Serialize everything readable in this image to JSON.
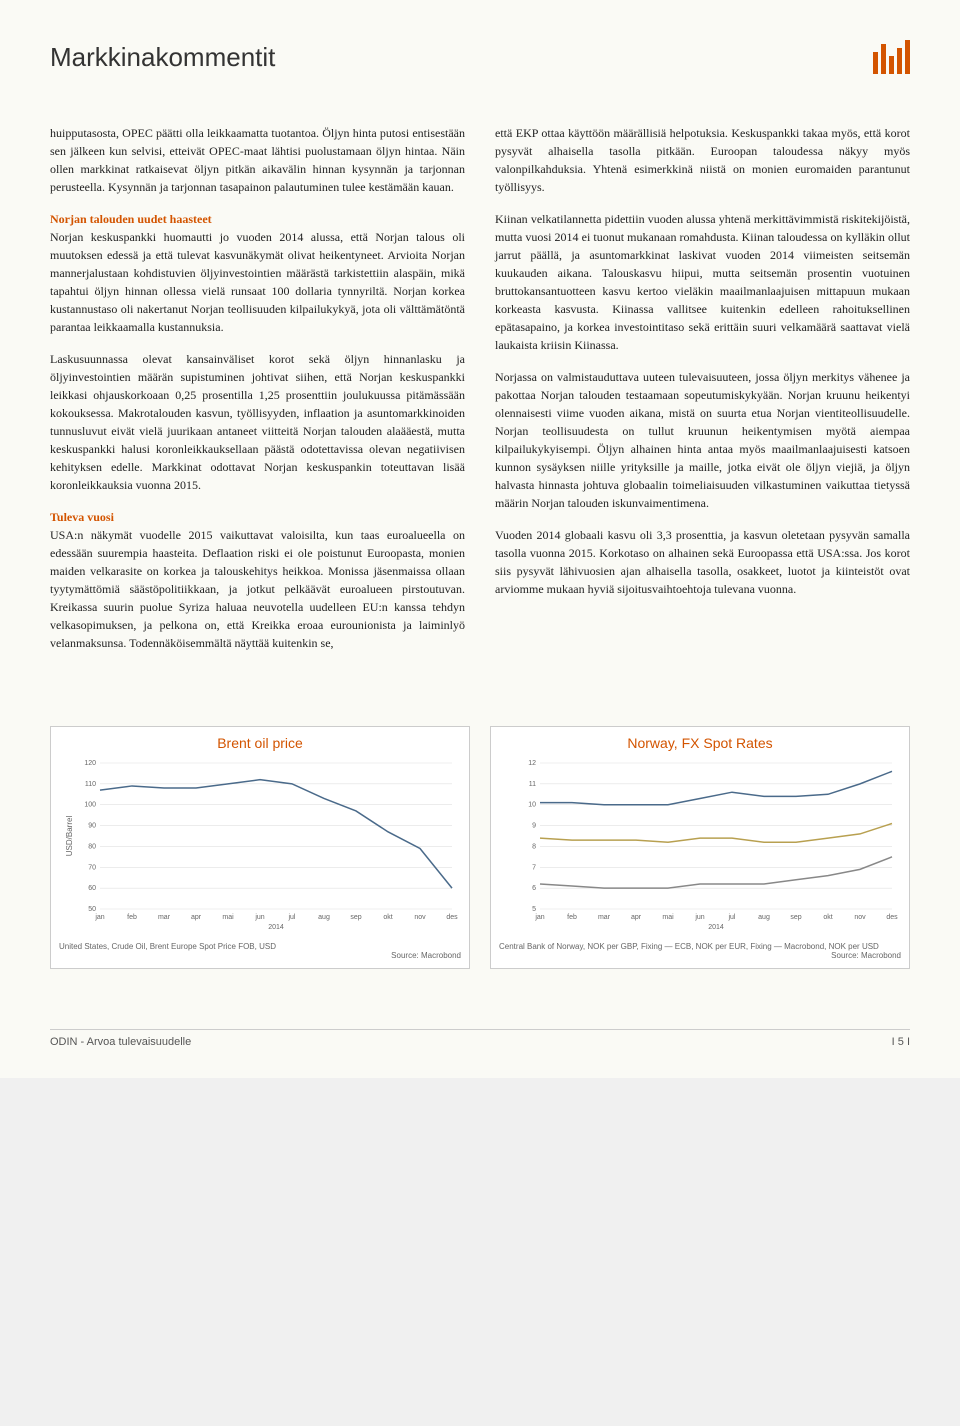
{
  "page_title": "Markkinakommentit",
  "logo": {
    "bar_color": "#d35400",
    "heights": [
      22,
      30,
      18,
      26,
      34
    ]
  },
  "left": {
    "p1": "huipputasosta, OPEC päätti olla leikkaamatta tuotantoa. Öljyn hinta putosi entisestään sen jälkeen kun selvisi, etteivät OPEC-maat lähtisi puolustamaan öljyn hintaa. Näin ollen markkinat ratkaisevat öljyn pitkän aikavälin hinnan kysynnän ja tarjonnan perusteella. Kysynnän ja tarjonnan tasapainon palautuminen tulee kestämään kauan.",
    "h1": "Norjan talouden uudet haasteet",
    "p2": "Norjan keskuspankki huomautti jo vuoden 2014 alussa, että Norjan talous oli muutoksen edessä ja että tulevat kasvunäkymät olivat heikentyneet. Arvioita Norjan mannerjalustaan kohdistuvien öljyinvestointien määrästä tarkistettiin alaspäin, mikä tapahtui öljyn hinnan ollessa vielä runsaat 100 dollaria tynnyriltä. Norjan korkea kustannustaso oli nakertanut Norjan teollisuuden kilpailukykyä, jota oli välttämätöntä parantaa leikkaamalla kustannuksia.",
    "p3": "Laskusuunnassa olevat kansainväliset korot sekä öljyn hinnanlasku ja öljyinvestointien määrän supistuminen johtivat siihen, että Norjan keskuspankki leikkasi ohjauskorkoaan 0,25 prosentilla 1,25 prosenttiin joulukuussa pitämässään kokouksessa. Makrotalouden kasvun, työllisyyden, inflaation ja asuntomarkkinoiden tunnusluvut eivät vielä juurikaan antaneet viitteitä Norjan talouden alaääestä, mutta keskuspankki halusi koronleikkauksellaan päästä odotettavissa olevan negatiivisen kehityksen edelle. Markkinat odottavat Norjan keskuspankin toteuttavan lisää koronleikkauksia vuonna 2015.",
    "h2": "Tuleva vuosi",
    "p4": "USA:n näkymät vuodelle 2015 vaikuttavat valoisilta, kun taas euroalueella on edessään suurempia haasteita. Deflaation riski ei ole poistunut Euroopasta, monien maiden velkarasite on korkea ja talouskehitys heikkoa. Monissa jäsenmaissa ollaan tyytymättömiä säästöpolitiikkaan, ja jotkut pelkäävät euroalueen pirstoutuvan. Kreikassa suurin puolue Syriza haluaa neuvotella uudelleen EU:n kanssa tehdyn velkasopimuksen, ja pelkona on, että Kreikka eroaa eurounionista ja laiminlyö velanmaksunsa. Todennäköisemmältä näyttää kuitenkin se,"
  },
  "right": {
    "p1": "että EKP ottaa käyttöön määrällisiä helpotuksia. Keskuspankki takaa myös, että korot pysyvät alhaisella tasolla pitkään. Euroopan taloudessa näkyy myös valonpilkahduksia. Yhtenä esimerkkinä niistä on monien euromaiden parantunut työllisyys.",
    "p2": "Kiinan velkatilannetta pidettiin vuoden alussa yhtenä merkittävimmistä riskitekijöistä, mutta vuosi 2014 ei tuonut mukanaan romahdusta. Kiinan taloudessa on kylläkin ollut jarrut päällä, ja asuntomarkkinat laskivat vuoden 2014 viimeisten seitsemän kuukauden aikana. Talouskasvu hiipui, mutta seitsemän prosentin vuotuinen bruttokansantuotteen kasvu kertoo vieläkin maailmanlaajuisen mittapuun mukaan korkeasta kasvusta. Kiinassa vallitsee kuitenkin edelleen rahoituksellinen epätasapaino, ja korkea investointitaso sekä erittäin suuri velkamäärä saattavat vielä laukaista kriisin Kiinassa.",
    "p3": "Norjassa on valmistauduttava uuteen tulevaisuuteen, jossa öljyn merkitys vähenee ja pakottaa Norjan talouden testaamaan sopeutumiskykyään. Norjan kruunu heikentyi olennaisesti viime vuoden aikana, mistä on suurta etua Norjan vientiteollisuudelle. Norjan teollisuudesta on tullut kruunun heikentymisen myötä aiempaa kilpailukykyisempi. Öljyn alhainen hinta antaa myös maailmanlaajuisesti katsoen kunnon sysäyksen niille yrityksille ja maille, jotka eivät ole öljyn viejiä, ja öljyn halvasta hinnasta johtuva globaalin toimeliaisuuden vilkastuminen vaikuttaa tietyssä määrin Norjan talouden iskunvaimentimena.",
    "p4": "Vuoden 2014 globaali kasvu oli 3,3 prosenttia, ja kasvun oletetaan pysyvän samalla tasolla vuonna 2015. Korkotaso on alhainen sekä Euroopassa että USA:ssa. Jos korot siis pysyvät lähivuosien ajan alhaisella tasolla, osakkeet, luotot ja kiinteistöt ovat arviomme mukaan hyviä sijoitusvaihtoehtoja tulevana vuonna."
  },
  "chart1": {
    "title": "Brent oil price",
    "ylabel": "USD/Barrel",
    "ylim": [
      50,
      120
    ],
    "ytick_step": 10,
    "x_labels": [
      "jan",
      "feb",
      "mar",
      "apr",
      "mai",
      "jun",
      "jul",
      "aug",
      "sep",
      "okt",
      "nov",
      "des"
    ],
    "year_label": "2014",
    "line_color": "#4a6a8a",
    "background_color": "#ffffff",
    "grid_color": "#e0e0e0",
    "values": [
      107,
      109,
      108,
      108,
      110,
      112,
      110,
      103,
      97,
      87,
      79,
      60
    ],
    "legend": "United States, Crude Oil, Brent Europe Spot Price FOB, USD",
    "source": "Source: Macrobond"
  },
  "chart2": {
    "title": "Norway, FX Spot Rates",
    "ylim": [
      5,
      12
    ],
    "ytick_step": 1,
    "x_labels": [
      "jan",
      "feb",
      "mar",
      "apr",
      "mai",
      "jun",
      "jul",
      "aug",
      "sep",
      "okt",
      "nov",
      "des"
    ],
    "year_label": "2014",
    "background_color": "#ffffff",
    "grid_color": "#e0e0e0",
    "series": [
      {
        "color": "#4a6a8a",
        "values": [
          10.1,
          10.1,
          10.0,
          10.0,
          10.0,
          10.3,
          10.6,
          10.4,
          10.4,
          10.5,
          11.0,
          11.6
        ]
      },
      {
        "color": "#b8a050",
        "values": [
          8.4,
          8.3,
          8.3,
          8.3,
          8.2,
          8.4,
          8.4,
          8.2,
          8.2,
          8.4,
          8.6,
          9.1
        ]
      },
      {
        "color": "#888888",
        "values": [
          6.2,
          6.1,
          6.0,
          6.0,
          6.0,
          6.2,
          6.2,
          6.2,
          6.4,
          6.6,
          6.9,
          7.5
        ]
      }
    ],
    "legend": "Central Bank of Norway, NOK per GBP, Fixing — ECB, NOK per EUR, Fixing — Macrobond, NOK per USD",
    "source": "Source: Macrobond"
  },
  "footer": {
    "left": "ODIN - Arvoa tulevaisuudelle",
    "right": "I 5 I"
  }
}
